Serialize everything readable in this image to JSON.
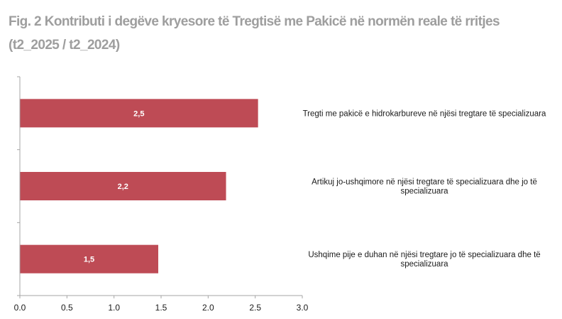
{
  "title": "Fig. 2 Kontributi i degëve kryesore të Tregtisë me Pakicë në normën reale të rritjes (t2_2025 / t2_2024)",
  "chart_data": {
    "type": "bar",
    "orientation": "horizontal",
    "categories": [
      "Tregti me pakicë e hidrokarbureve në njësi tregtare të specializuara",
      "Artikuj jo-ushqimore në njësi tregtare të specializuara dhe jo të specializuara",
      "Ushqime pije e duhan në njësi tregtare  jo të specializuara dhe të specializuara"
    ],
    "category_lines": [
      [
        "Tregti me pakicë e hidrokarbureve në njësi tregtare të specializuara"
      ],
      [
        "Artikuj jo-ushqimore në njësi tregtare të specializuara dhe jo të",
        "specializuara"
      ],
      [
        "Ushqime pije e duhan në njësi tregtare  jo të specializuara dhe të",
        "specializuara"
      ]
    ],
    "values": [
      2.53,
      2.19,
      1.47
    ],
    "data_labels": [
      "2,5",
      "2,2",
      "1,5"
    ],
    "xlim": [
      0,
      3.0
    ],
    "xticks": [
      "0.0",
      "0.5",
      "1.0",
      "1.5",
      "2.0",
      "2.5",
      "3.0"
    ],
    "xtick_values": [
      0,
      0.5,
      1.0,
      1.5,
      2.0,
      2.5,
      3.0
    ],
    "xlabel": "",
    "ylabel": "",
    "grid": false,
    "legend": "none",
    "colors": {
      "bar": "#be4b55",
      "data_label": "#ffffff",
      "axis": "#a6a6a6",
      "tick_label": "#1a1a1a",
      "category_label": "#1a1a1a",
      "title": "#9e9e9e"
    }
  }
}
